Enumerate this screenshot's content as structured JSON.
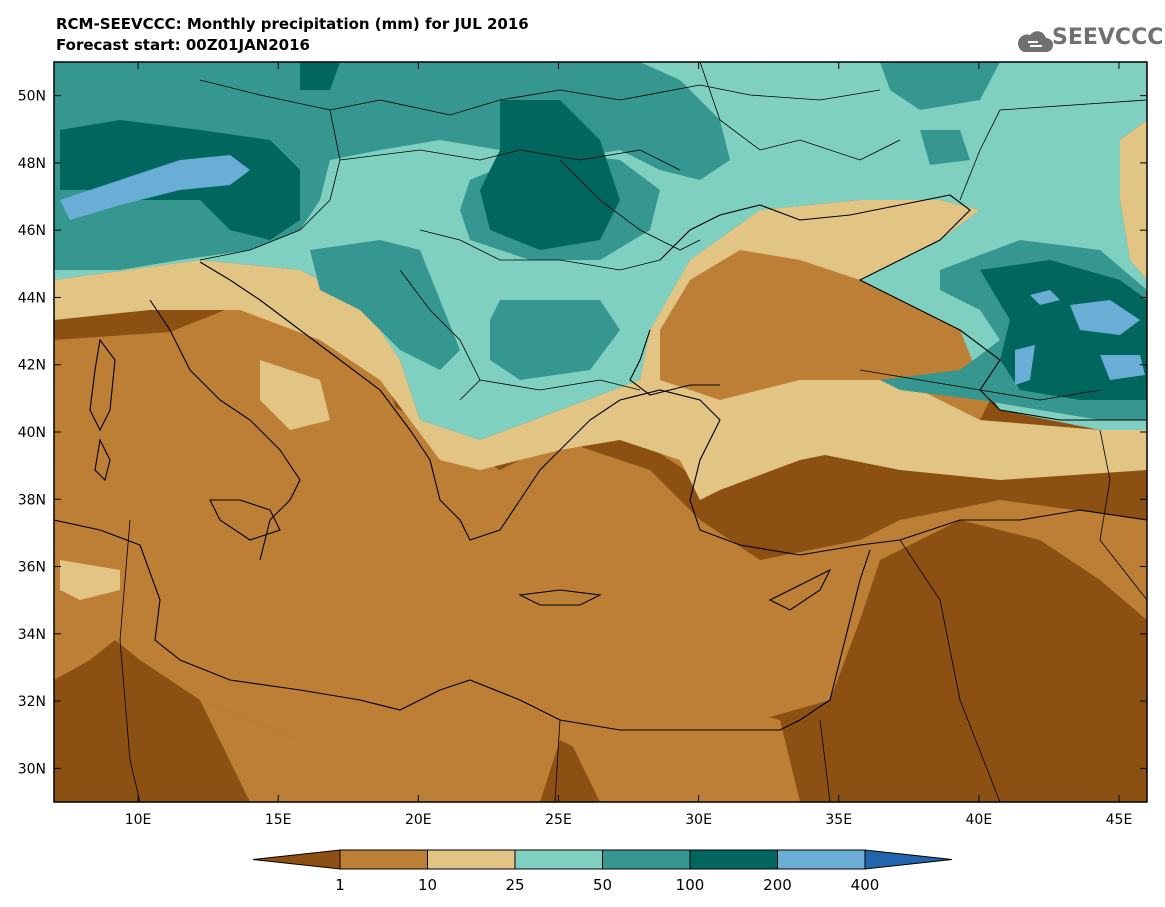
{
  "header": {
    "title": "RCM-SEEVCCC: Monthly precipitation (mm) for JUL 2016",
    "subtitle": "Forecast start: 00Z01JAN2016"
  },
  "logo": {
    "text": "SEEVCCC",
    "icon": "cloud-icon",
    "color": "#707070"
  },
  "map": {
    "lon_range": [
      7,
      46
    ],
    "lat_range": [
      29,
      51
    ],
    "lon_ticks": [
      {
        "value": 10,
        "label": "10E"
      },
      {
        "value": 15,
        "label": "15E"
      },
      {
        "value": 20,
        "label": "20E"
      },
      {
        "value": 25,
        "label": "25E"
      },
      {
        "value": 30,
        "label": "30E"
      },
      {
        "value": 35,
        "label": "35E"
      },
      {
        "value": 40,
        "label": "40E"
      },
      {
        "value": 45,
        "label": "45E"
      }
    ],
    "lat_ticks": [
      {
        "value": 30,
        "label": "30N"
      },
      {
        "value": 32,
        "label": "32N"
      },
      {
        "value": 34,
        "label": "34N"
      },
      {
        "value": 36,
        "label": "36N"
      },
      {
        "value": 38,
        "label": "38N"
      },
      {
        "value": 40,
        "label": "40N"
      },
      {
        "value": 42,
        "label": "42N"
      },
      {
        "value": 44,
        "label": "44N"
      },
      {
        "value": 46,
        "label": "46N"
      },
      {
        "value": 48,
        "label": "48N"
      },
      {
        "value": 50,
        "label": "50N"
      }
    ]
  },
  "colorbar": {
    "colors": [
      "#8b5012",
      "#bc7f35",
      "#e2c485",
      "#80d0c1",
      "#35978f",
      "#01665e",
      "#6aaed6",
      "#2166ac"
    ],
    "labels": [
      "1",
      "10",
      "25",
      "50",
      "100",
      "200",
      "400"
    ]
  }
}
